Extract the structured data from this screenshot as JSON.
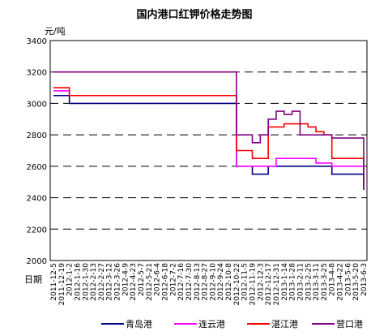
{
  "chart_data": {
    "type": "line",
    "title": "国内港口红钾价格走势图",
    "ylabel": "元/吨",
    "xlabel": "日期",
    "ylim": [
      2000,
      3400
    ],
    "yticks": [
      2000,
      2200,
      2400,
      2600,
      2800,
      3000,
      3200,
      3400
    ],
    "grid": "horizontal dashed",
    "legend_position": "bottom",
    "x": [
      "2011-12-5",
      "2011-12-19",
      "2012-1-2",
      "2012-1-16",
      "2012-1-30",
      "2012-2-13",
      "2012-2-27",
      "2012-3-12",
      "2012-3-26",
      "2012-4-9",
      "2012-4-23",
      "2012-5-7",
      "2012-5-21",
      "2012-6-4",
      "2012-6-18",
      "2012-7-2",
      "2012-7-16",
      "2012-7-30",
      "2012-8-13",
      "2012-8-27",
      "2012-9-10",
      "2012-9-24",
      "2012-10-8",
      "2012-10-22",
      "2012-11-5",
      "2012-11-19",
      "2012-12-3",
      "2012-12-17",
      "2012-12-31",
      "2013-1-14",
      "2013-1-28",
      "2013-2-11",
      "2013-2-25",
      "2013-3-11",
      "2013-3-25",
      "2013-4-8",
      "2013-4-22",
      "2013-5-6",
      "2013-5-20",
      "2013-6-3"
    ],
    "series": [
      {
        "name": "青岛港",
        "color": "#000080",
        "values": [
          3050,
          3050,
          3000,
          3000,
          3000,
          3000,
          3000,
          3000,
          3000,
          3000,
          3000,
          3000,
          3000,
          3000,
          3000,
          3000,
          3000,
          3000,
          3000,
          3000,
          3000,
          3000,
          3000,
          2600,
          2600,
          2550,
          2550,
          2600,
          2600,
          2600,
          2600,
          2600,
          2600,
          2600,
          2600,
          2550,
          2550,
          2550,
          2550,
          2450
        ]
      },
      {
        "name": "连云港",
        "color": "#ff00ff",
        "values": [
          3080,
          3080,
          3050,
          3050,
          3050,
          3050,
          3050,
          3050,
          3050,
          3050,
          3050,
          3050,
          3050,
          3050,
          3050,
          3050,
          3050,
          3050,
          3050,
          3050,
          3050,
          3050,
          3050,
          2600,
          2600,
          2600,
          2600,
          2600,
          2650,
          2650,
          2650,
          2650,
          2650,
          2620,
          2620,
          2600,
          2600,
          2600,
          2600,
          2450
        ]
      },
      {
        "name": "湛江港",
        "color": "#ff0000",
        "values": [
          3100,
          3100,
          3050,
          3050,
          3050,
          3050,
          3050,
          3050,
          3050,
          3050,
          3050,
          3050,
          3050,
          3050,
          3050,
          3050,
          3050,
          3050,
          3050,
          3050,
          3050,
          3050,
          3050,
          2700,
          2700,
          2650,
          2650,
          2850,
          2850,
          2870,
          2870,
          2870,
          2850,
          2820,
          2800,
          2650,
          2650,
          2650,
          2650,
          2500
        ]
      },
      {
        "name": "营口港",
        "color": "#800080",
        "values": [
          3200,
          3200,
          3200,
          3200,
          3200,
          3200,
          3200,
          3200,
          3200,
          3200,
          3200,
          3200,
          3200,
          3200,
          3200,
          3200,
          3200,
          3200,
          3200,
          3200,
          3200,
          3200,
          3200,
          2800,
          2800,
          2750,
          2800,
          2900,
          2950,
          2930,
          2950,
          2800,
          2800,
          2800,
          2800,
          2780,
          2780,
          2780,
          2780,
          2450
        ]
      }
    ]
  }
}
